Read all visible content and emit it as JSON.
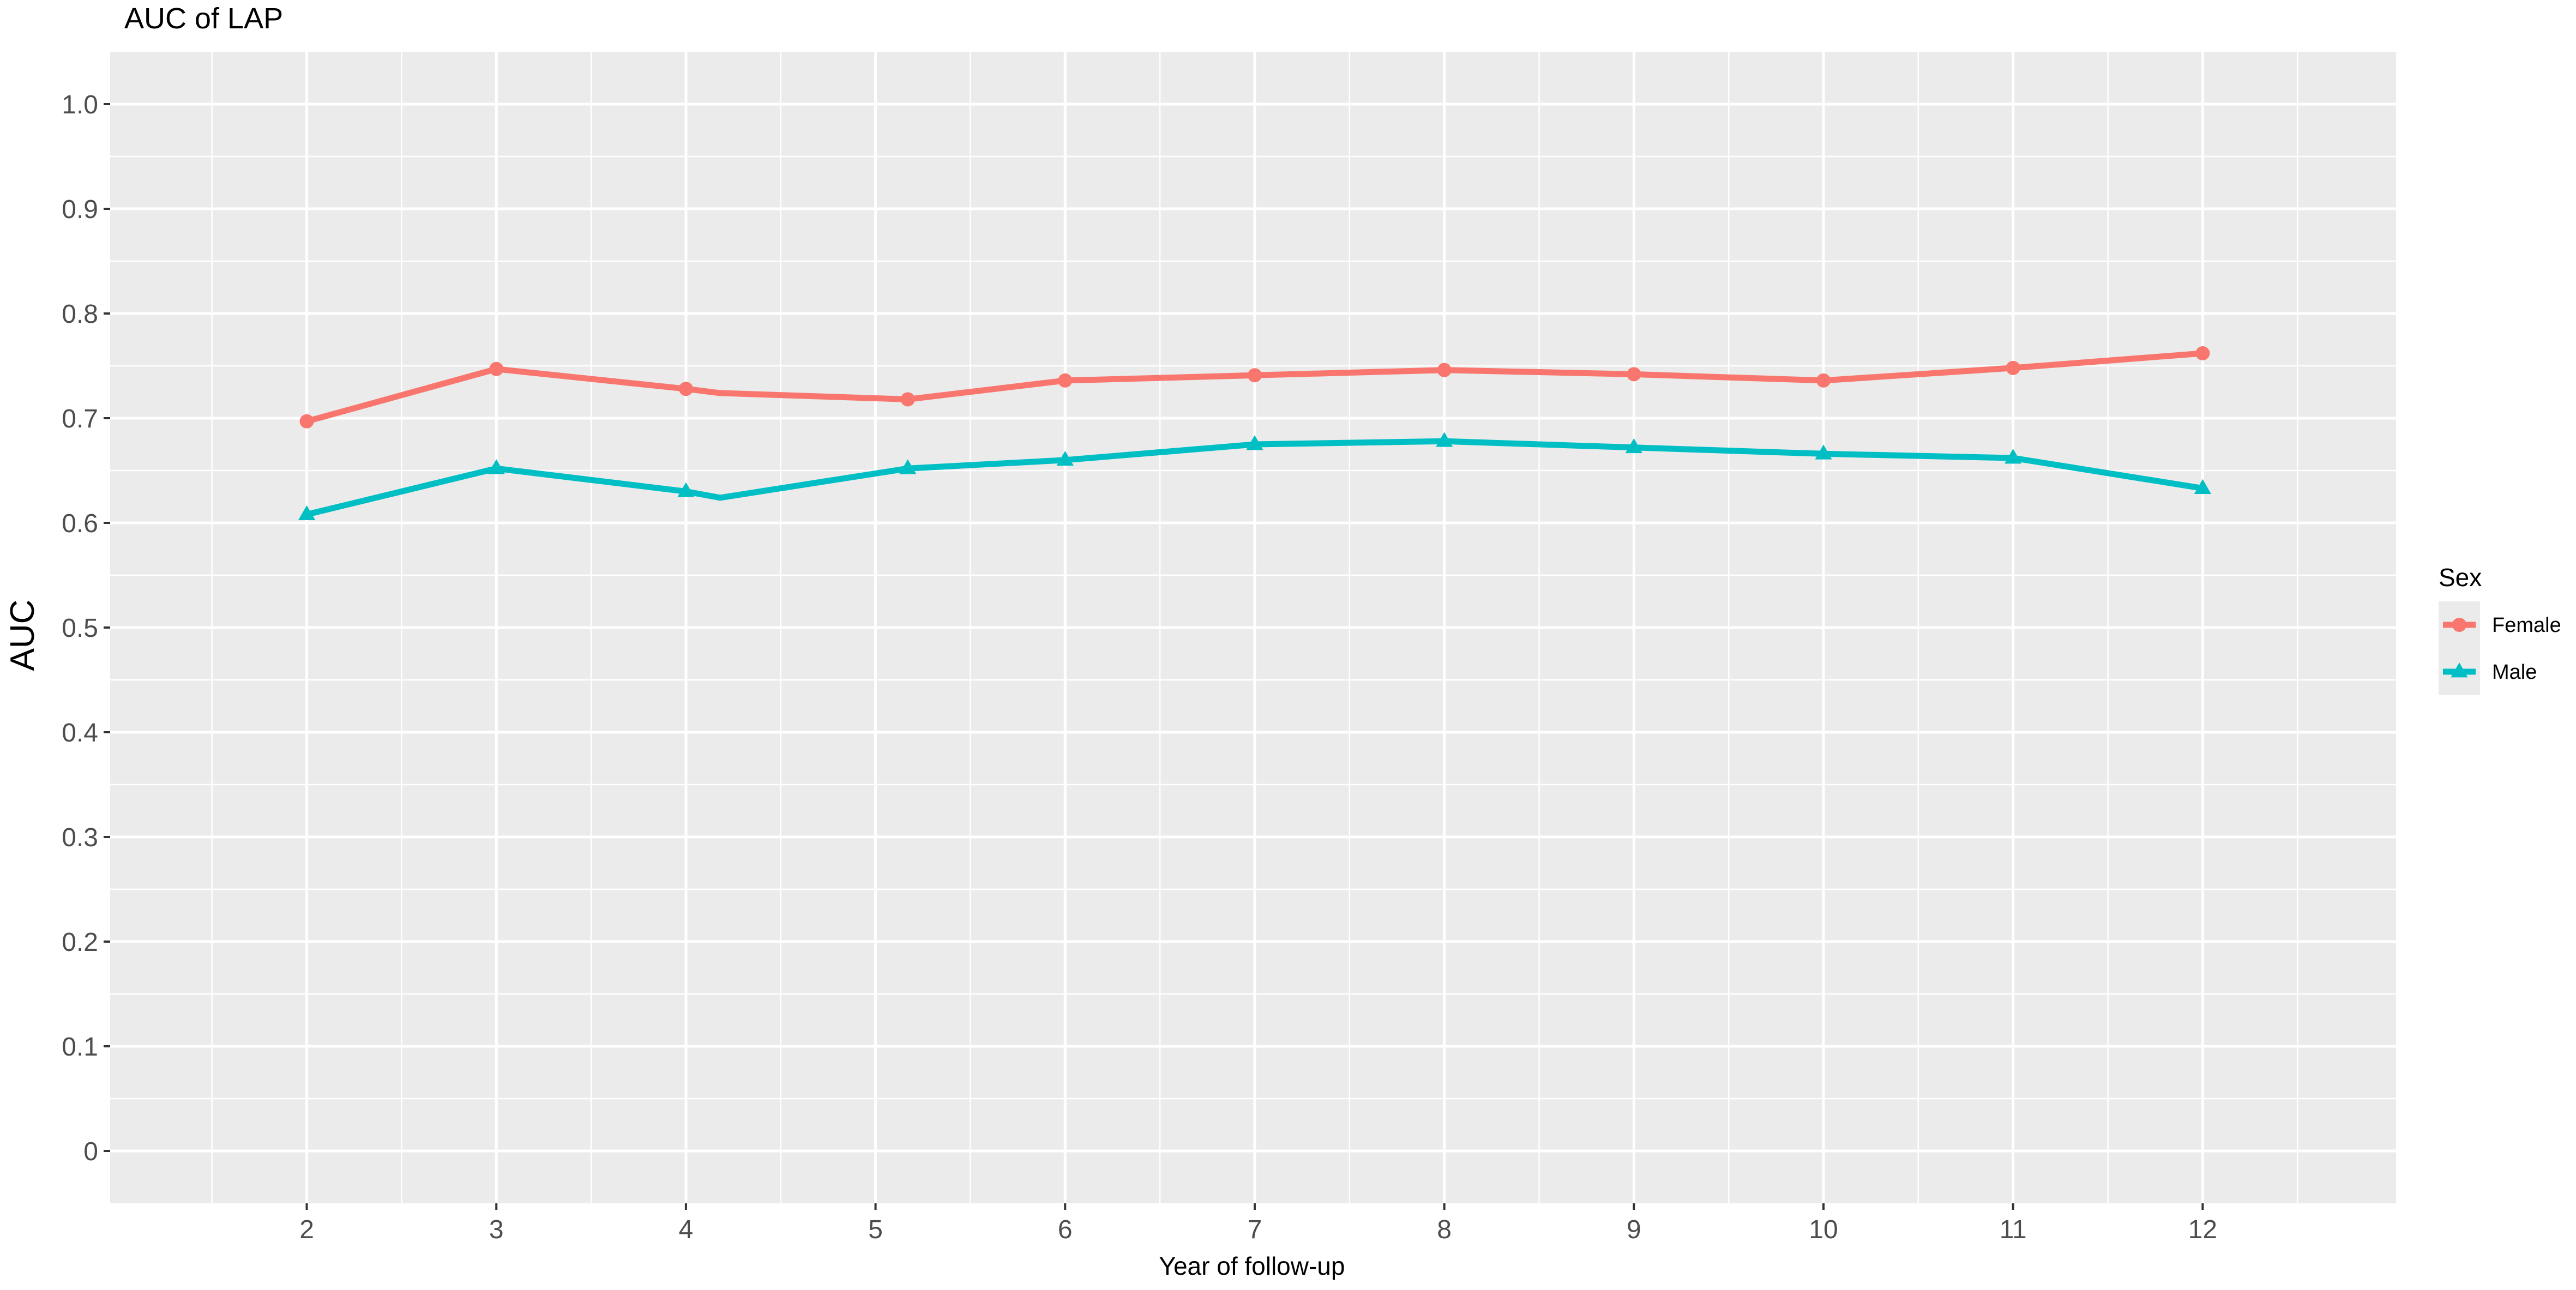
{
  "chart_data": {
    "type": "line",
    "title": "AUC of LAP",
    "xlabel": "Year of follow-up",
    "ylabel": "AUC",
    "x_ticks": [
      2,
      3,
      4,
      5,
      6,
      7,
      8,
      9,
      10,
      11,
      12
    ],
    "x_tick_labels": [
      "2",
      "3",
      "4",
      "5",
      "6",
      "7",
      "8",
      "9",
      "10",
      "11",
      "12"
    ],
    "xlim": [
      0.963,
      13.02
    ],
    "y_ticks": [
      0,
      0.1,
      0.2,
      0.3,
      0.4,
      0.5,
      0.6,
      0.7,
      0.8,
      0.9,
      1.0
    ],
    "y_tick_labels": [
      "0",
      "0.1",
      "0.2",
      "0.3",
      "0.4",
      "0.5",
      "0.6",
      "0.7",
      "0.8",
      "0.9",
      "1.0"
    ],
    "ylim": [
      -0.05,
      1.05
    ],
    "grid": true,
    "legend": {
      "title": "Sex",
      "position": "right"
    },
    "series": [
      {
        "name": "Female",
        "color": "#F8766D",
        "marker": "circle",
        "points": [
          {
            "x": 2,
            "y": 0.697,
            "marker": true
          },
          {
            "x": 3,
            "y": 0.747,
            "marker": true
          },
          {
            "x": 4,
            "y": 0.728,
            "marker": true
          },
          {
            "x": 4.18,
            "y": 0.724,
            "marker": false
          },
          {
            "x": 5.17,
            "y": 0.718,
            "marker": true
          },
          {
            "x": 6,
            "y": 0.736,
            "marker": true
          },
          {
            "x": 7,
            "y": 0.741,
            "marker": true
          },
          {
            "x": 8,
            "y": 0.746,
            "marker": true
          },
          {
            "x": 9,
            "y": 0.742,
            "marker": true
          },
          {
            "x": 10,
            "y": 0.736,
            "marker": true
          },
          {
            "x": 11,
            "y": 0.748,
            "marker": true
          },
          {
            "x": 12,
            "y": 0.762,
            "marker": true
          }
        ]
      },
      {
        "name": "Male",
        "color": "#00BFC4",
        "marker": "triangle",
        "points": [
          {
            "x": 2,
            "y": 0.608,
            "marker": true
          },
          {
            "x": 3,
            "y": 0.652,
            "marker": true
          },
          {
            "x": 4,
            "y": 0.63,
            "marker": true
          },
          {
            "x": 4.18,
            "y": 0.624,
            "marker": false
          },
          {
            "x": 5.17,
            "y": 0.652,
            "marker": true
          },
          {
            "x": 6,
            "y": 0.66,
            "marker": true
          },
          {
            "x": 7,
            "y": 0.675,
            "marker": true
          },
          {
            "x": 8,
            "y": 0.678,
            "marker": true
          },
          {
            "x": 9,
            "y": 0.672,
            "marker": true
          },
          {
            "x": 10,
            "y": 0.666,
            "marker": true
          },
          {
            "x": 11,
            "y": 0.662,
            "marker": true
          },
          {
            "x": 12,
            "y": 0.633,
            "marker": true
          }
        ]
      }
    ]
  }
}
